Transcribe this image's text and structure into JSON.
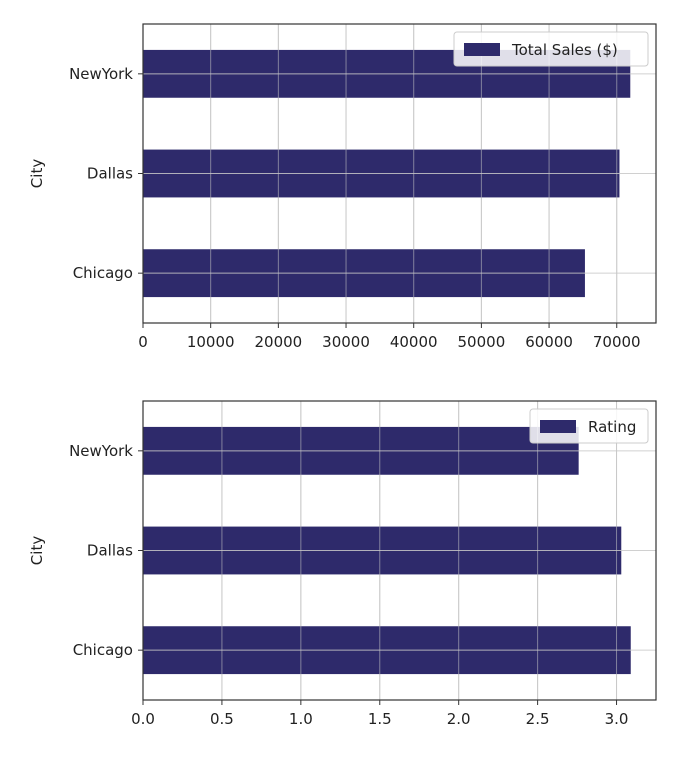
{
  "colors": {
    "bar": "#2e2a6b",
    "grid": "#c8c8c8",
    "axes": "#333333",
    "legend_border": "#cccccc"
  },
  "chart_data": [
    {
      "type": "bar",
      "orientation": "horizontal",
      "categories": [
        "Chicago",
        "Dallas",
        "NewYork"
      ],
      "series": [
        {
          "name": "Total Sales ($)",
          "values": [
            65300,
            70400,
            72000
          ]
        }
      ],
      "xlabel": "",
      "ylabel": "City",
      "xlim": [
        0,
        75800
      ],
      "xticks": [
        0,
        10000,
        20000,
        30000,
        40000,
        50000,
        60000,
        70000
      ],
      "xtick_labels": [
        "0",
        "10000",
        "20000",
        "30000",
        "40000",
        "50000",
        "60000",
        "70000"
      ],
      "grid": true,
      "legend": "top-right"
    },
    {
      "type": "bar",
      "orientation": "horizontal",
      "categories": [
        "Chicago",
        "Dallas",
        "NewYork"
      ],
      "series": [
        {
          "name": "Rating",
          "values": [
            3.09,
            3.03,
            2.76
          ]
        }
      ],
      "xlabel": "",
      "ylabel": "City",
      "xlim": [
        0,
        3.25
      ],
      "xticks": [
        0.0,
        0.5,
        1.0,
        1.5,
        2.0,
        2.5,
        3.0
      ],
      "xtick_labels": [
        "0.0",
        "0.5",
        "1.0",
        "1.5",
        "2.0",
        "2.5",
        "3.0"
      ],
      "grid": true,
      "legend": "top-right"
    }
  ]
}
